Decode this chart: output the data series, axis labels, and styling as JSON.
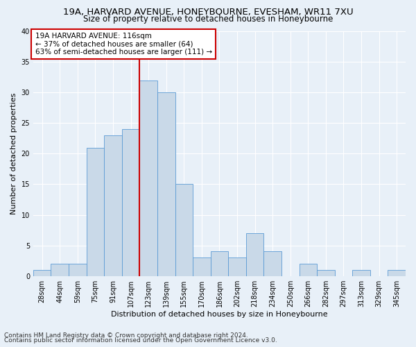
{
  "title_line1": "19A, HARVARD AVENUE, HONEYBOURNE, EVESHAM, WR11 7XU",
  "title_line2": "Size of property relative to detached houses in Honeybourne",
  "xlabel": "Distribution of detached houses by size in Honeybourne",
  "ylabel": "Number of detached properties",
  "bin_labels": [
    "28sqm",
    "44sqm",
    "59sqm",
    "75sqm",
    "91sqm",
    "107sqm",
    "123sqm",
    "139sqm",
    "155sqm",
    "170sqm",
    "186sqm",
    "202sqm",
    "218sqm",
    "234sqm",
    "250sqm",
    "266sqm",
    "282sqm",
    "297sqm",
    "313sqm",
    "329sqm",
    "345sqm"
  ],
  "bar_heights": [
    1,
    2,
    2,
    21,
    23,
    24,
    32,
    30,
    15,
    3,
    4,
    3,
    7,
    4,
    0,
    2,
    1,
    0,
    1,
    0,
    1
  ],
  "bar_color": "#c9d9e8",
  "bar_edge_color": "#5b9bd5",
  "vline_x": 5.5,
  "vline_color": "#cc0000",
  "annotation_text": "19A HARVARD AVENUE: 116sqm\n← 37% of detached houses are smaller (64)\n63% of semi-detached houses are larger (111) →",
  "annotation_box_color": "#ffffff",
  "annotation_box_edge_color": "#cc0000",
  "ylim": [
    0,
    40
  ],
  "yticks": [
    0,
    5,
    10,
    15,
    20,
    25,
    30,
    35,
    40
  ],
  "footer_line1": "Contains HM Land Registry data © Crown copyright and database right 2024.",
  "footer_line2": "Contains public sector information licensed under the Open Government Licence v3.0.",
  "bg_color": "#e8f0f8",
  "plot_bg_color": "#e8f0f8",
  "grid_color": "#ffffff",
  "title_fontsize": 9.5,
  "subtitle_fontsize": 8.5,
  "axis_label_fontsize": 8,
  "tick_fontsize": 7,
  "annotation_fontsize": 7.5,
  "footer_fontsize": 6.5
}
